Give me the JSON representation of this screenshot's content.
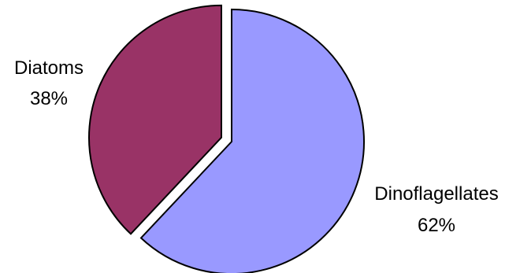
{
  "chart_data": {
    "type": "pie",
    "title": "",
    "slices": [
      {
        "label": "Dinoflagellates",
        "value": 62,
        "value_label": "62%",
        "color": "#9999ff",
        "exploded": false
      },
      {
        "label": "Diatoms",
        "value": 38,
        "value_label": "38%",
        "color": "#993366",
        "exploded": true
      }
    ],
    "start": "12 o'clock",
    "direction": "clockwise",
    "outline_color": "#000000",
    "legend": "none",
    "labels": "category and percent beside slices"
  }
}
